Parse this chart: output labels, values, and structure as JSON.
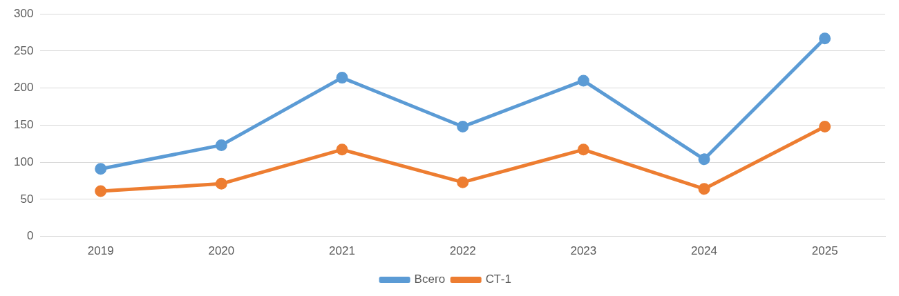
{
  "chart_data": {
    "type": "line",
    "categories": [
      "2019",
      "2020",
      "2021",
      "2022",
      "2023",
      "2024",
      "2025"
    ],
    "series": [
      {
        "name": "Всего",
        "color": "#5b9bd5",
        "values": [
          91,
          123,
          214,
          148,
          210,
          104,
          267
        ]
      },
      {
        "name": "СТ-1",
        "color": "#ed7d31",
        "values": [
          61,
          71,
          117,
          73,
          117,
          64,
          148
        ]
      }
    ],
    "ylim": [
      0,
      300
    ],
    "yticks": [
      0,
      50,
      100,
      150,
      200,
      250,
      300
    ],
    "grid": "y",
    "legend": "bottom",
    "marker": "circle",
    "line_style": "solid"
  }
}
